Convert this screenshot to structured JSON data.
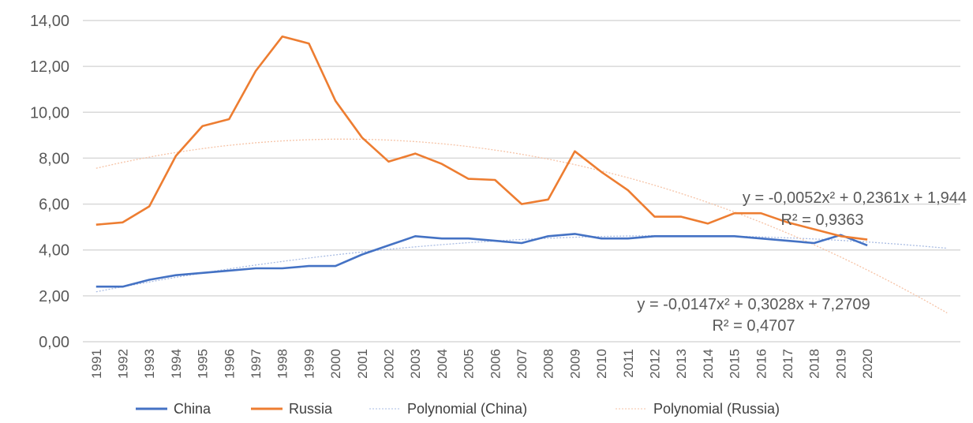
{
  "chart_data": {
    "type": "line",
    "title": "",
    "xlabel": "",
    "ylabel": "",
    "ylim": [
      0,
      14
    ],
    "ytick_labels": [
      "0,00",
      "2,00",
      "4,00",
      "6,00",
      "8,00",
      "10,00",
      "12,00",
      "14,00"
    ],
    "yticks": [
      0,
      2,
      4,
      6,
      8,
      10,
      12,
      14
    ],
    "grid": true,
    "legend_position": "bottom",
    "categories": [
      "1991",
      "1992",
      "1993",
      "1994",
      "1995",
      "1996",
      "1997",
      "1998",
      "1999",
      "2000",
      "2001",
      "2002",
      "2003",
      "2004",
      "2005",
      "2006",
      "2007",
      "2008",
      "2009",
      "2010",
      "2011",
      "2012",
      "2013",
      "2014",
      "2015",
      "2016",
      "2017",
      "2018",
      "2019",
      "2020"
    ],
    "series": [
      {
        "name": "China",
        "color": "#4472C4",
        "values": [
          2.4,
          2.4,
          2.7,
          2.9,
          3.0,
          3.1,
          3.2,
          3.2,
          3.3,
          3.3,
          3.8,
          4.2,
          4.6,
          4.5,
          4.5,
          4.4,
          4.3,
          4.6,
          4.7,
          4.5,
          4.5,
          4.6,
          4.6,
          4.6,
          4.6,
          4.5,
          4.4,
          4.3,
          4.65,
          4.2
        ]
      },
      {
        "name": "Russia",
        "color": "#ED7D31",
        "values": [
          5.1,
          5.2,
          5.9,
          8.1,
          9.4,
          9.7,
          11.8,
          13.3,
          13.0,
          10.5,
          8.9,
          7.85,
          8.2,
          7.75,
          7.1,
          7.05,
          6.0,
          6.2,
          8.3,
          7.4,
          6.6,
          5.45,
          5.45,
          5.15,
          5.6,
          5.6,
          5.2,
          4.9,
          4.6,
          4.45
        ]
      }
    ],
    "trendlines": [
      {
        "name": "Polynomial (China)",
        "color": "#A9BCE3",
        "coefficients": [
          -0.0052,
          0.2361,
          1.944
        ],
        "equation": "y = -0,0052x² + 0,2361x + 1,944",
        "r2": "R² = 0,9363",
        "forward_periods": 3
      },
      {
        "name": "Polynomial (Russia)",
        "color": "#F6C3A6",
        "coefficients": [
          -0.0147,
          0.3028,
          7.2709
        ],
        "equation": "y = -0,0147x² + 0,3028x + 7,2709",
        "r2": "R² = 0,4707",
        "forward_periods": 3
      }
    ],
    "legend": [
      "China",
      "Russia",
      "Polynomial (China)",
      "Polynomial (Russia)"
    ]
  }
}
